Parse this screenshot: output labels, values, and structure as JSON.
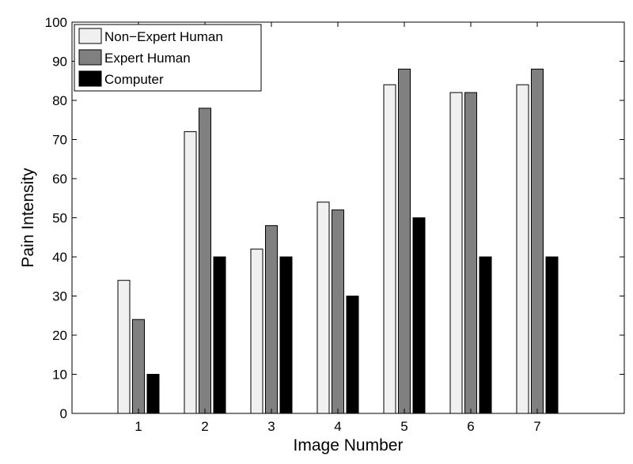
{
  "chart_data": {
    "type": "bar",
    "title": "",
    "xlabel": "Image Number",
    "ylabel": "Pain Intensity",
    "categories": [
      "1",
      "2",
      "3",
      "4",
      "5",
      "6",
      "7"
    ],
    "ylim": [
      0,
      100
    ],
    "yticks": [
      "0",
      "10",
      "20",
      "30",
      "40",
      "50",
      "60",
      "70",
      "80",
      "90",
      "100"
    ],
    "grid": false,
    "legend_position": "top-left",
    "series": [
      {
        "name": "Non−Expert Human",
        "color": "#f0f0f0",
        "values": [
          34,
          72,
          42,
          54,
          84,
          82,
          84
        ]
      },
      {
        "name": "Expert Human",
        "color": "#808080",
        "values": [
          24,
          78,
          48,
          52,
          88,
          82,
          88
        ]
      },
      {
        "name": "Computer",
        "color": "#000000",
        "values": [
          10,
          40,
          40,
          30,
          50,
          40,
          40
        ]
      }
    ]
  }
}
